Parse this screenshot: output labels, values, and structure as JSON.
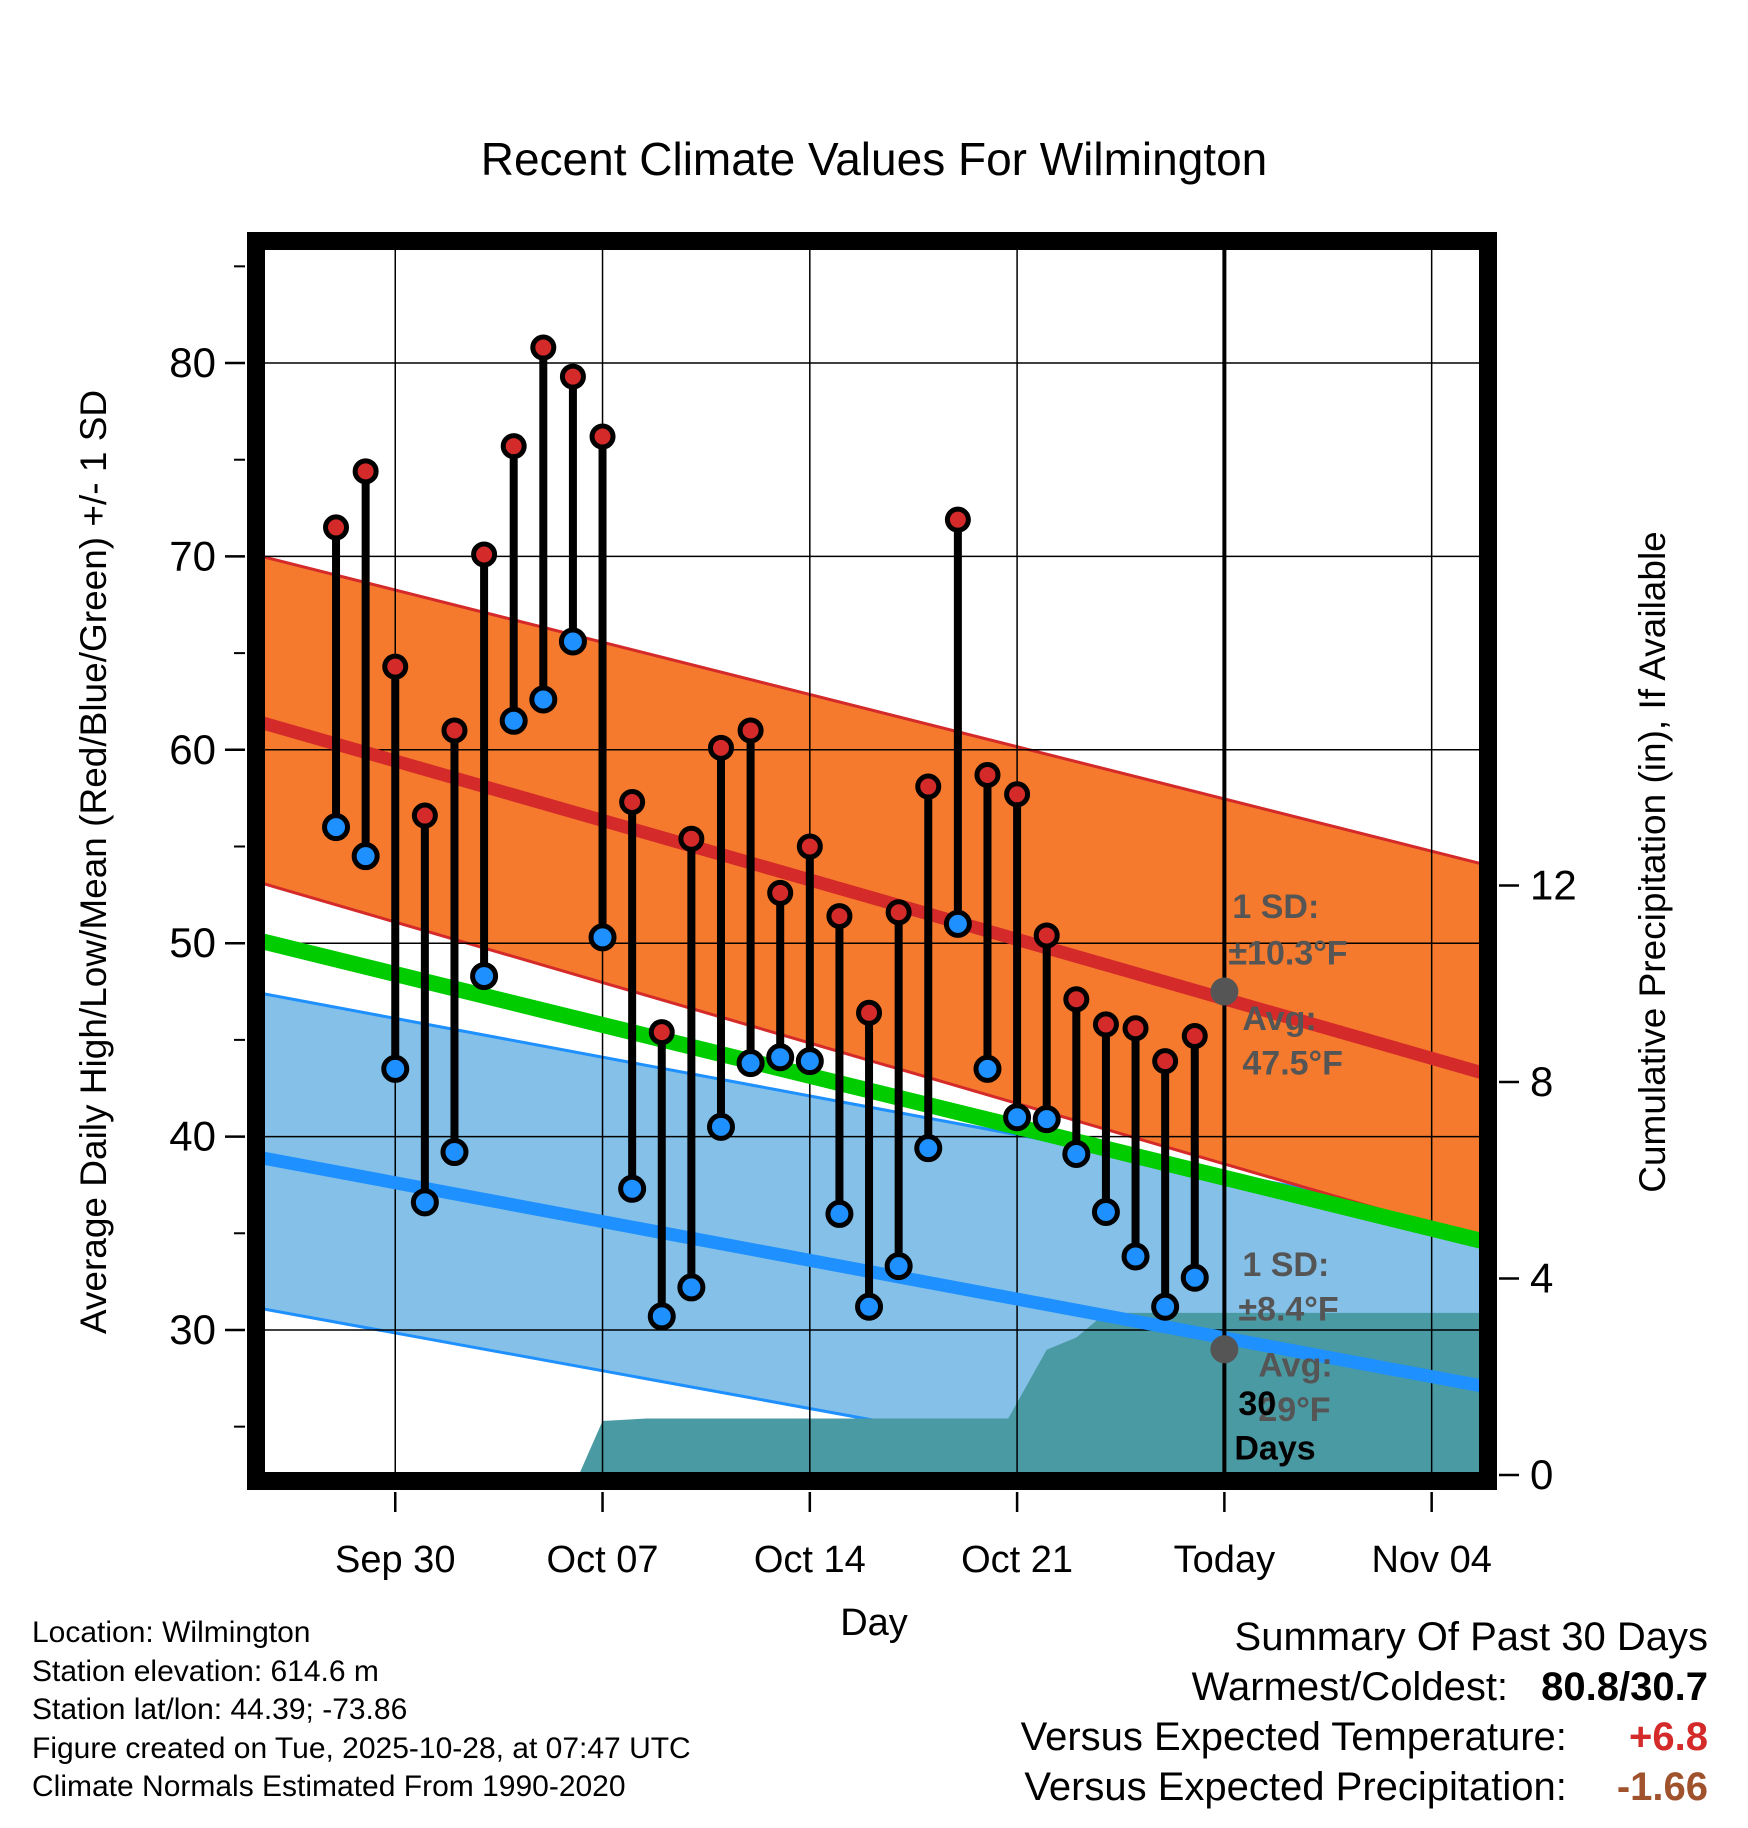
{
  "chart_data": {
    "type": "line",
    "title": "Recent Climate Values For Wilmington",
    "xlabel": "Day",
    "ylabel_left": "Average Daily High/Low/Mean (Red/Blue/Green) +/- 1 SD",
    "ylabel_right": "Cumulative Precipitation (in), If Available",
    "x_domain_days": [
      -32.5,
      8.7
    ],
    "y_left_range": [
      22.5,
      86
    ],
    "y_right_range": [
      0,
      25
    ],
    "y_left_ticks": [
      30,
      40,
      50,
      60,
      70,
      80
    ],
    "y_left_tick_labels": [
      "30",
      "40",
      "50",
      "60",
      "70",
      "80"
    ],
    "y_right_ticks": [
      0,
      4,
      8,
      12
    ],
    "y_right_tick_labels": [
      "0",
      "4",
      "8",
      "12"
    ],
    "x_ticks": [
      -28,
      -21,
      -14,
      -7,
      0,
      7
    ],
    "x_tick_labels": [
      "Sep 30",
      "Oct 07",
      "Oct 14",
      "Oct 21",
      "Today",
      "Nov 04"
    ],
    "normals": {
      "high_avg": [
        61.4,
        43.3
      ],
      "high_upper": [
        70.0,
        54.1
      ],
      "high_lower": [
        53.1,
        34.7
      ],
      "low_avg": [
        38.9,
        27.1
      ],
      "low_upper": [
        47.4,
        35.6
      ],
      "low_lower": [
        31.1,
        19.6
      ],
      "mean_avg": [
        50.1,
        34.6
      ]
    },
    "days": [
      -30,
      -29,
      -28,
      -27,
      -26,
      -25,
      -24,
      -23,
      -22,
      -21,
      -20,
      -19,
      -18,
      -17,
      -16,
      -15,
      -14,
      -13,
      -12,
      -11,
      -10,
      -9,
      -8,
      -7,
      -6,
      -5,
      -4,
      -3,
      -2,
      -1
    ],
    "highs": [
      71.5,
      74.4,
      64.3,
      56.6,
      61.0,
      70.1,
      75.7,
      80.8,
      79.3,
      76.2,
      57.3,
      45.4,
      55.4,
      60.1,
      61.0,
      52.6,
      55.0,
      51.4,
      46.4,
      51.6,
      58.1,
      71.9,
      58.7,
      57.7,
      50.4,
      47.1,
      45.8,
      45.6,
      43.9,
      45.2
    ],
    "lows": [
      56.0,
      54.5,
      43.5,
      36.6,
      39.2,
      48.3,
      61.5,
      62.6,
      65.6,
      50.3,
      37.3,
      30.7,
      32.2,
      40.5,
      43.8,
      44.1,
      43.9,
      36.0,
      31.2,
      33.3,
      39.4,
      51.0,
      43.5,
      41.0,
      40.9,
      39.1,
      36.1,
      33.8,
      31.2,
      32.7
    ],
    "precip_cumulative": {
      "days": [
        -32.5,
        -21.8,
        -21.0,
        -19.5,
        -13.7,
        -7.3,
        -6.0,
        -5.0,
        -4.0,
        8.7
      ],
      "values": [
        0,
        0,
        1.1,
        1.15,
        1.15,
        1.15,
        2.55,
        2.8,
        3.3,
        3.3
      ]
    },
    "annotations": {
      "high_sd_label": "1 SD:",
      "high_sd_value": "±10.3°F",
      "high_avg_label": "Avg:",
      "high_avg_value": "47.5°F",
      "high_avg_point": 47.5,
      "low_sd_label": "1 SD:",
      "low_sd_value": "±8.4°F",
      "low_avg_label": "Avg:",
      "low_avg_value": "29°F",
      "low_avg_point": 29,
      "period_label": "30",
      "period_label_2": "Days"
    },
    "colors": {
      "high_band": "#f57a2d",
      "high_line": "#d42a2a",
      "low_band": "#84c0e7",
      "low_line": "#1e90ff",
      "mean_line": "#00cc00",
      "precip": "#4a9aa4",
      "high_marker": "#d42a2a",
      "low_marker": "#1e90ff",
      "annotation": "#555555"
    }
  },
  "info": {
    "location": "Location: Wilmington",
    "elevation": "Station elevation: 614.6 m",
    "latlon": "Station lat/lon: 44.39; -73.86",
    "created": "Figure created on Tue, 2025-10-28, at 07:47 UTC",
    "normals": "Climate Normals Estimated From 1990-2020"
  },
  "summary": {
    "title": "Summary Of Past 30 Days",
    "warm_cold_label": "Warmest/Coldest:",
    "warm_cold_value": "80.8/30.7",
    "temp_label": "Versus Expected Temperature:",
    "temp_value": "+6.8",
    "temp_color": "#d42a2a",
    "precip_label": "Versus Expected Precipitation:",
    "precip_value": "-1.66",
    "precip_color": "#a0522d"
  }
}
